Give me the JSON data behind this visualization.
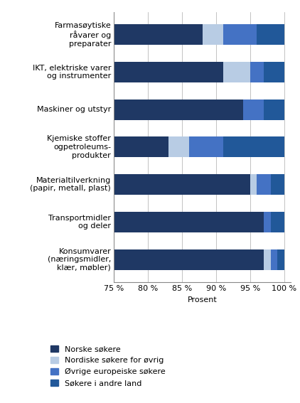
{
  "categories": [
    "Farmasøytiske\nråvarer og\npreparater",
    "IKT, elektriske varer\nog instrumenter",
    "Maskiner og utstyr",
    "Kjemiske stoffer\nogpetroleums-\nprodukter",
    "Materialtilverkning\n(papir, metall, plast)",
    "Transportmidler\nog deler",
    "Konsumvarer\n(næringsmidler,\nklær, møbler)"
  ],
  "series": {
    "Norske søkere": [
      88,
      91,
      94,
      83,
      95,
      97,
      97
    ],
    "Nordiske søkere for øvrig": [
      3,
      4,
      0,
      3,
      1,
      0,
      1
    ],
    "Øvrige europeiske søkere": [
      5,
      2,
      3,
      5,
      2,
      1,
      1
    ],
    "Søkere i andre land": [
      4,
      3,
      3,
      9,
      2,
      2,
      1
    ]
  },
  "colors": {
    "Norske søkere": "#1f3864",
    "Nordiske søkere for øvrig": "#b8cce4",
    "Øvrige europeiske søkere": "#4472c4",
    "Søkere i andre land": "#215899"
  },
  "xlim": [
    75,
    101
  ],
  "xmin": 75,
  "xticks": [
    75,
    80,
    85,
    90,
    95,
    100
  ],
  "xlabel": "Prosent",
  "legend_order": [
    "Norske søkere",
    "Nordiske søkere for øvrig",
    "Øvrige europeiske søkere",
    "Søkere i andre land"
  ],
  "bar_height": 0.55,
  "background_color": "#ffffff"
}
